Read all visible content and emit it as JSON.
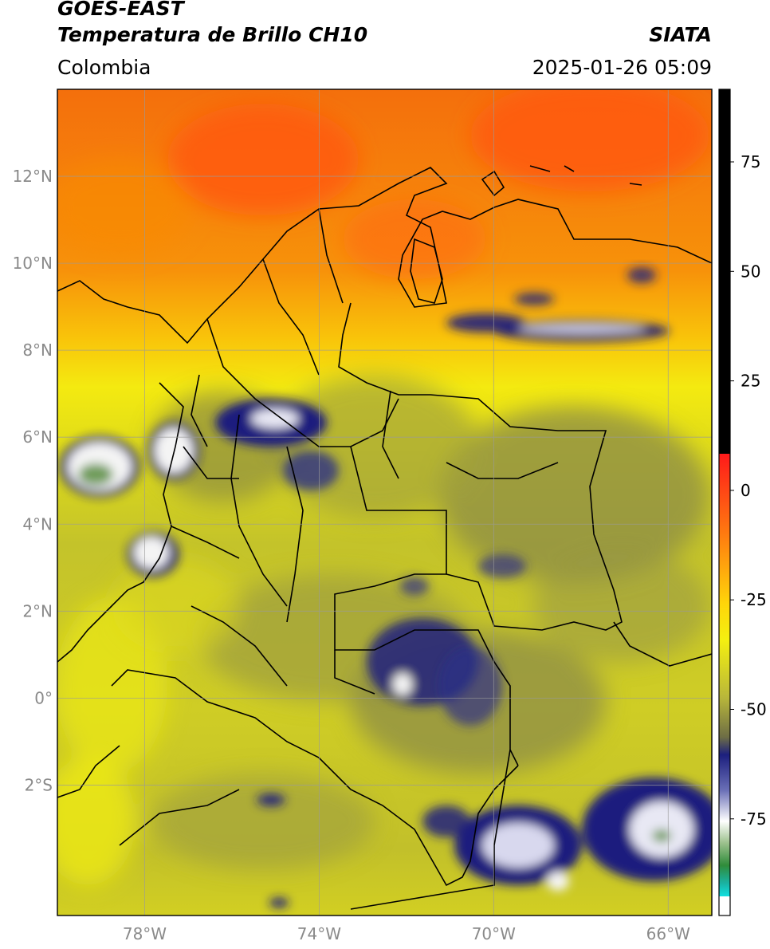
{
  "header": {
    "satellite": "GOES-EAST",
    "product": "Temperatura de Brillo CH10",
    "region": "Colombia",
    "org": "SIATA",
    "datetime": "2025-01-26 05:09"
  },
  "map": {
    "lon_range": [
      -80,
      -65
    ],
    "lat_range": [
      -5,
      14
    ],
    "lon_ticks": [
      "78°W",
      "74°W",
      "70°W",
      "66°W"
    ],
    "lat_ticks": [
      "12°N",
      "10°N",
      "8°N",
      "6°N",
      "4°N",
      "2°N",
      "0°",
      "2°S"
    ],
    "gridlines": true,
    "colors": {
      "ocean_warm": "#f58c0a",
      "hot_core": "#ff5a12",
      "yellow": "#f2ee10",
      "olive": "#a7a83a",
      "dark_olive": "#6e6e45",
      "navy": "#1c1f7e",
      "white": "#f4f4f4",
      "green": "#6f9c5a",
      "border": "#000000",
      "grid": "#9a9a9a"
    }
  },
  "colorbar": {
    "ticks": [
      "75",
      "50",
      "25",
      "0",
      "-25",
      "-50",
      "-75"
    ]
  }
}
